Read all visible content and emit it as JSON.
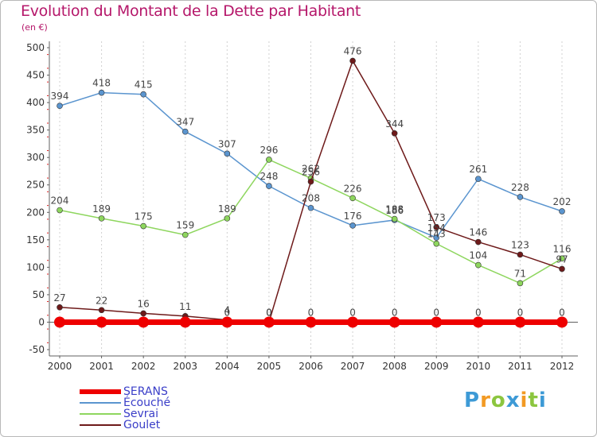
{
  "chart_data": {
    "type": "line",
    "title": "Evolution du Montant de la Dette par Habitant",
    "subtitle": "(en €)",
    "xlabel": "",
    "ylabel": "",
    "ylim": [
      -50,
      500
    ],
    "yticks": [
      -50,
      0,
      50,
      100,
      150,
      200,
      250,
      300,
      350,
      400,
      450,
      500
    ],
    "x": [
      "2000",
      "2001",
      "2002",
      "2003",
      "2004",
      "2005",
      "2006",
      "2007",
      "2008",
      "2009",
      "2010",
      "2011",
      "2012"
    ],
    "grid": "vertical",
    "legend_position": "bottom-left",
    "series": [
      {
        "name": "SERANS",
        "color": "#ee0000",
        "values": [
          0,
          0,
          0,
          0,
          0,
          0,
          0,
          0,
          0,
          0,
          0,
          0,
          0
        ]
      },
      {
        "name": "Écouché",
        "color": "#5b95cf",
        "values": [
          394,
          418,
          415,
          347,
          307,
          248,
          208,
          176,
          186,
          154,
          261,
          228,
          202
        ]
      },
      {
        "name": "Sevrai",
        "color": "#8ed65e",
        "values": [
          204,
          189,
          175,
          159,
          189,
          296,
          262,
          226,
          188,
          143,
          104,
          71,
          116
        ]
      },
      {
        "name": "Goulet",
        "color": "#6e1a1a",
        "values": [
          27,
          22,
          16,
          11,
          4,
          0,
          256,
          476,
          344,
          173,
          146,
          123,
          97
        ]
      }
    ],
    "data_labels": {
      "Écouché": [
        "394",
        "418",
        "415",
        "347",
        "307",
        "248",
        "208",
        "176",
        "186",
        "154",
        "261",
        "228",
        "202"
      ],
      "Sevrai": [
        "204",
        "189",
        "175",
        "159",
        "189",
        "296",
        "262",
        "226",
        "188",
        "143",
        "104",
        "71",
        "116"
      ],
      "Goulet": [
        "27",
        "22",
        "16",
        "11",
        "4",
        "0",
        "256",
        "476",
        "344",
        "173",
        "146",
        "123",
        "97"
      ],
      "SERANS": [
        "",
        "",
        "",
        "",
        "0",
        "0",
        "0",
        "0",
        "0",
        "0",
        "0",
        "0",
        "0"
      ]
    }
  },
  "logo": {
    "letters": [
      "P",
      "r",
      "o",
      "x",
      "i",
      "t",
      "i"
    ],
    "colors": [
      "#3d9ad6",
      "#f29a24",
      "#8cc63f",
      "#3d9ad6",
      "#f29a24",
      "#8cc63f",
      "#3d9ad6"
    ]
  }
}
